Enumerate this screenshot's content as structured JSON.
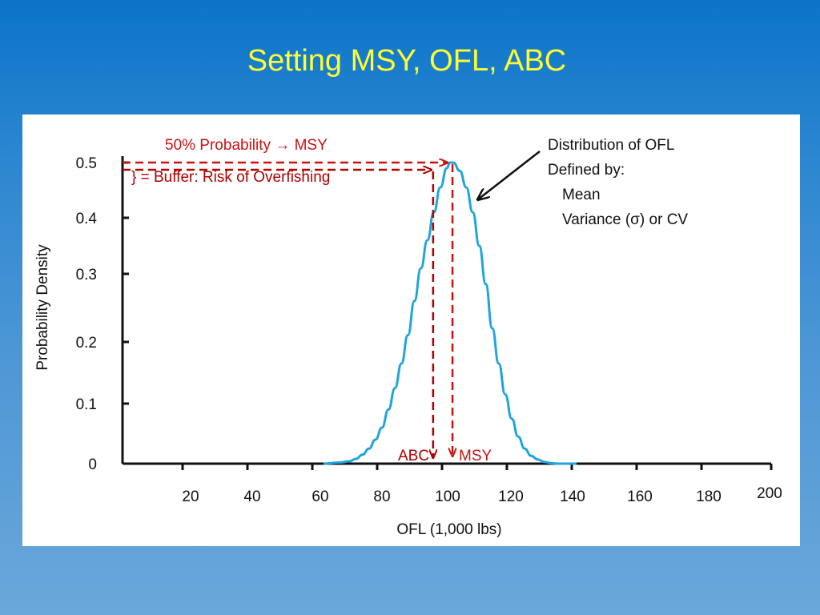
{
  "slide": {
    "title": "Setting MSY, OFL, ABC"
  },
  "chart_data": {
    "type": "line",
    "xlabel": "OFL (1,000 lbs)",
    "ylabel": "Probability Density",
    "xlim": [
      0,
      200
    ],
    "ylim": [
      0,
      0.5
    ],
    "x_ticks": [
      20,
      40,
      60,
      80,
      100,
      120,
      140,
      160,
      180,
      200
    ],
    "y_ticks": [
      "0",
      "0.1",
      "0.2",
      "0.3",
      "0.4",
      "0.5"
    ],
    "y_tick_values": [
      0,
      0.1,
      0.2,
      0.3,
      0.4,
      0.5
    ],
    "grid": false,
    "series": [
      {
        "color": "#1fa5dc",
        "x": [
          62,
          67,
          70,
          72,
          74,
          76,
          78,
          80,
          82,
          84,
          86,
          88,
          90,
          92,
          94,
          96,
          98,
          100,
          101,
          102,
          104,
          106,
          108,
          110,
          112,
          114,
          116,
          118,
          120,
          122,
          124,
          126,
          128,
          130,
          132,
          134,
          136,
          140
        ],
        "y": [
          0.0,
          0.002,
          0.004,
          0.008,
          0.015,
          0.025,
          0.04,
          0.06,
          0.09,
          0.125,
          0.165,
          0.21,
          0.26,
          0.31,
          0.36,
          0.41,
          0.455,
          0.49,
          0.5,
          0.5,
          0.485,
          0.455,
          0.41,
          0.35,
          0.285,
          0.22,
          0.165,
          0.115,
          0.075,
          0.045,
          0.025,
          0.013,
          0.007,
          0.003,
          0.001,
          0.0,
          0.0,
          0.0
        ]
      }
    ],
    "markers": {
      "msy_x": 101,
      "msy_y": 0.5,
      "abc_x": 97,
      "abc_y": 0.455
    },
    "annotations": {
      "msy_arrow": "50% Probability → MSY",
      "buffer": "} = Buffer: Risk of Overfishing",
      "abc_label": "ABC",
      "msy_label": "MSY",
      "distribution_lines": [
        "Distribution of OFL",
        "Defined by:",
        "Mean",
        "Variance (σ) or CV"
      ]
    },
    "colors": {
      "annotation_red": "#cc1111",
      "annotation_dark_red": "#b00000",
      "axis": "#111111",
      "curve": "#1fa5dc"
    }
  }
}
